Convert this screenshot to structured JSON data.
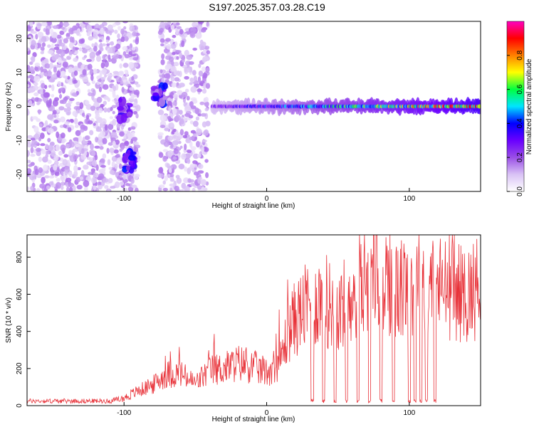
{
  "title": "S197.2025.357.03.28.C19",
  "chart_data": [
    {
      "type": "heatmap",
      "xlabel": "Height of straight line (km)",
      "ylabel": "Frequency (Hz)",
      "xlim": [
        -168,
        150
      ],
      "ylim": [
        -25,
        25
      ],
      "xticks": [
        -100,
        0,
        100
      ],
      "yticks": [
        -20,
        -10,
        0,
        10,
        20
      ],
      "colorbar": {
        "label": "Normalized spectral amplitude",
        "range": [
          0,
          1
        ],
        "ticks": [
          "0.0",
          "0.2",
          "0.4",
          "0.6",
          "0.8"
        ],
        "colors": [
          "#ffffff",
          "#d9c2f5",
          "#9a4ee6",
          "#6a00ff",
          "#0000ff",
          "#00e5ff",
          "#00ff40",
          "#ffff00",
          "#ff8000",
          "#ff0000",
          "#ff00c0"
        ]
      },
      "features": [
        {
          "name": "noise",
          "x_range": [
            -168,
            -90
          ],
          "freq_range": [
            -25,
            25
          ],
          "amplitude": 0.15
        },
        {
          "name": "noise",
          "x_range": [
            -75,
            -41
          ],
          "freq_range": [
            -25,
            25
          ],
          "amplitude": 0.15
        },
        {
          "name": "burst",
          "x": -96,
          "freq": -16,
          "amplitude": 0.35
        },
        {
          "name": "burst",
          "x": -100,
          "freq": -1,
          "amplitude": 0.3
        },
        {
          "name": "burst",
          "x": -75,
          "freq": 3,
          "amplitude": 0.35
        },
        {
          "name": "ridge",
          "x_range": [
            -38,
            150
          ],
          "freq": 0,
          "amplitude_start": 0.3,
          "amplitude_end": 0.95
        }
      ]
    },
    {
      "type": "line",
      "xlabel": "Height of straight line (km)",
      "ylabel": "SNR (10 * v/v)",
      "xlim": [
        -168,
        150
      ],
      "ylim": [
        0,
        920
      ],
      "xticks": [
        -100,
        0,
        100
      ],
      "yticks": [
        0,
        200,
        400,
        600,
        800
      ],
      "color": "#e8333a",
      "series": [
        {
          "name": "SNR",
          "x": [
            -168,
            -150,
            -130,
            -110,
            -100,
            -90,
            -80,
            -70,
            -60,
            -50,
            -40,
            -30,
            -20,
            -10,
            0,
            10,
            15,
            20,
            30,
            40,
            50,
            60,
            70,
            80,
            90,
            100,
            110,
            120,
            130,
            140,
            150
          ],
          "values": [
            25,
            25,
            25,
            25,
            40,
            80,
            110,
            170,
            170,
            120,
            190,
            200,
            230,
            210,
            180,
            250,
            400,
            470,
            550,
            580,
            500,
            620,
            700,
            760,
            600,
            650,
            700,
            650,
            620,
            600,
            650
          ]
        }
      ],
      "dropouts": [
        32,
        40,
        48,
        56,
        64,
        72,
        80,
        89,
        100,
        104,
        108,
        112,
        118
      ]
    }
  ]
}
